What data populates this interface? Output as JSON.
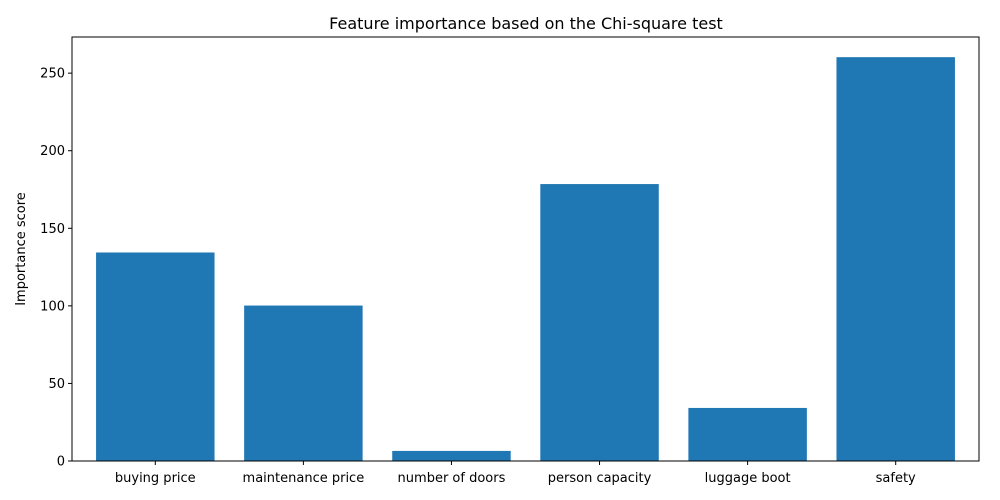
{
  "chart_data": {
    "type": "bar",
    "title": "Feature importance based on the Chi-square test",
    "xlabel": "",
    "ylabel": "Importance score",
    "categories": [
      "buying price",
      "maintenance price",
      "number of doors",
      "person capacity",
      "luggage boot",
      "safety"
    ],
    "values": [
      134.4,
      100.2,
      6.5,
      178.5,
      34.2,
      260.3
    ],
    "ylim": [
      0,
      273.3
    ],
    "yticks": [
      0,
      50,
      100,
      150,
      200,
      250
    ],
    "grid": false,
    "bar_color": "#1f77b4"
  }
}
